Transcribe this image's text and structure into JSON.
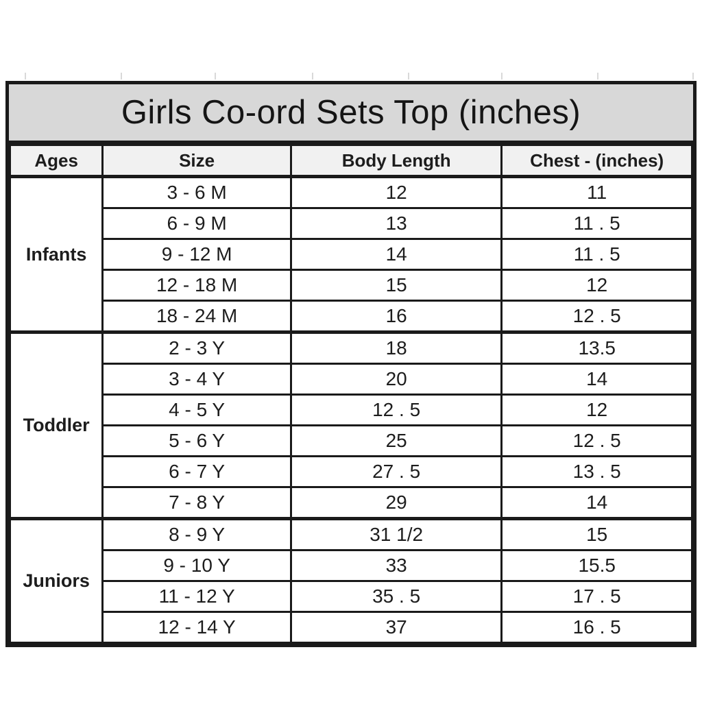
{
  "table": {
    "title": "Girls Co-ord Sets Top (inches)",
    "columns": [
      "Ages",
      "Size",
      "Body Length",
      "Chest - (inches)"
    ],
    "groups": [
      {
        "age": "Infants",
        "rows": [
          [
            "3 - 6 M",
            "12",
            "11"
          ],
          [
            "6 - 9 M",
            "13",
            "11 . 5"
          ],
          [
            "9 - 12 M",
            "14",
            "11 . 5"
          ],
          [
            "12 - 18 M",
            "15",
            "12"
          ],
          [
            "18 - 24 M",
            "16",
            "12 . 5"
          ]
        ]
      },
      {
        "age": "Toddler",
        "rows": [
          [
            "2 - 3 Y",
            "18",
            "13.5"
          ],
          [
            "3 - 4 Y",
            "20",
            "14"
          ],
          [
            "4 - 5 Y",
            "12 . 5",
            "12"
          ],
          [
            "5 - 6 Y",
            "25",
            "12 . 5"
          ],
          [
            "6 - 7 Y",
            "27 . 5",
            "13 . 5"
          ],
          [
            "7 - 8 Y",
            "29",
            "14"
          ]
        ]
      },
      {
        "age": "Juniors",
        "rows": [
          [
            "8 - 9 Y",
            "31 1/2",
            "15"
          ],
          [
            "9 - 10 Y",
            "33",
            "15.5"
          ],
          [
            "11 - 12 Y",
            "35 . 5",
            "17 . 5"
          ],
          [
            "12 - 14 Y",
            "37",
            "16 . 5"
          ]
        ]
      }
    ]
  },
  "colors": {
    "title_band": "#d8d8d8",
    "header_bg": "#f1f1f1",
    "border": "#1a1a1a",
    "text": "#1d1d1d",
    "page_bg": "#ffffff",
    "gridline": "#d9d9d9"
  }
}
